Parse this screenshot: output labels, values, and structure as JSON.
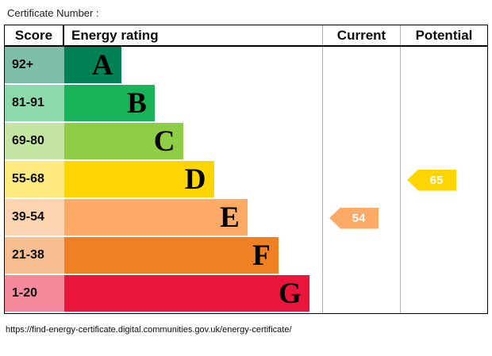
{
  "page": {
    "title": "Certificate Number :",
    "footer_url": "https://find-energy-certificate.digital.communities.gov.uk/energy-certificate/"
  },
  "table": {
    "headers": {
      "score": "Score",
      "rating": "Energy rating",
      "current": "Current",
      "potential": "Potential"
    }
  },
  "bands": [
    {
      "score": "92+",
      "letter": "A",
      "color": "#008054",
      "tint": "#7fbfa9",
      "width_pct": 22
    },
    {
      "score": "81-91",
      "letter": "B",
      "color": "#19b459",
      "tint": "#8cd9ac",
      "width_pct": 35
    },
    {
      "score": "69-80",
      "letter": "C",
      "color": "#8dce46",
      "tint": "#c5e6a2",
      "width_pct": 46
    },
    {
      "score": "55-68",
      "letter": "D",
      "color": "#ffd500",
      "tint": "#ffea80",
      "width_pct": 58
    },
    {
      "score": "39-54",
      "letter": "E",
      "color": "#fcaa65",
      "tint": "#fdd4b2",
      "width_pct": 71
    },
    {
      "score": "21-38",
      "letter": "F",
      "color": "#ef8023",
      "tint": "#f7bf91",
      "width_pct": 83
    },
    {
      "score": "1-20",
      "letter": "G",
      "color": "#e9153b",
      "tint": "#f4899c",
      "width_pct": 95
    }
  ],
  "current": {
    "value": "54",
    "band_letter": "E",
    "color": "#fcaa65"
  },
  "potential": {
    "value": "65",
    "band_letter": "D",
    "color": "#ffd500"
  },
  "chart_data": {
    "type": "bar",
    "title": "Energy rating",
    "categories": [
      "A",
      "B",
      "C",
      "D",
      "E",
      "F",
      "G"
    ],
    "score_ranges": [
      "92+",
      "81-91",
      "69-80",
      "55-68",
      "39-54",
      "21-38",
      "1-20"
    ],
    "band_colors": [
      "#008054",
      "#19b459",
      "#8dce46",
      "#ffd500",
      "#fcaa65",
      "#ef8023",
      "#e9153b"
    ],
    "bar_width_pct": [
      22,
      35,
      46,
      58,
      71,
      83,
      95
    ],
    "current_rating": 54,
    "current_band": "E",
    "potential_rating": 65,
    "potential_band": "D",
    "legend_position": "none",
    "grid": false
  }
}
